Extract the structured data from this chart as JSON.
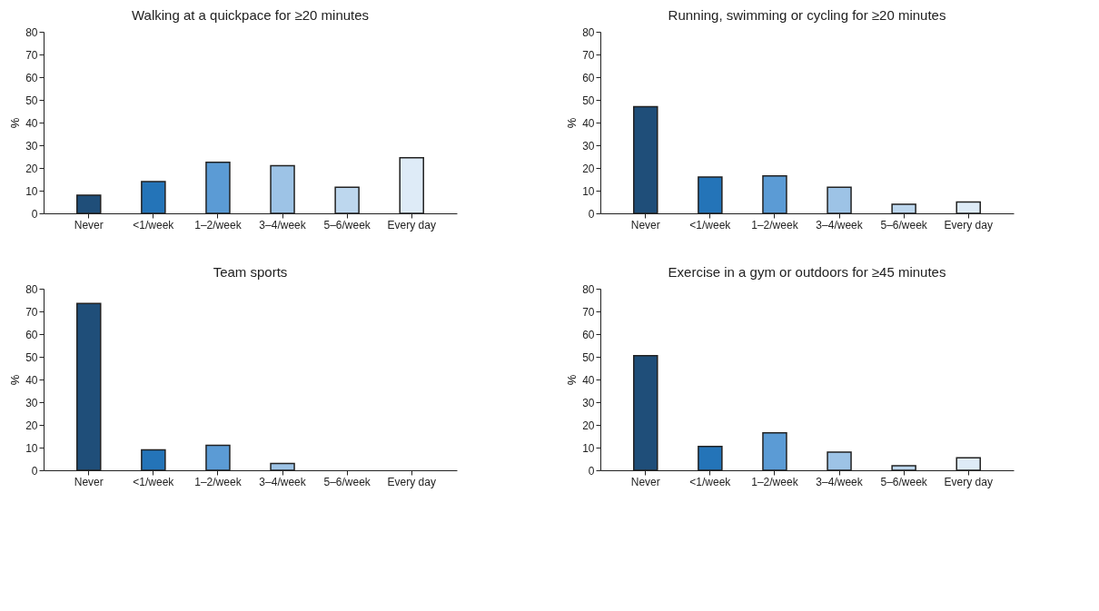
{
  "chart_data": [
    {
      "type": "bar",
      "title": "Walking at a quickpace for ≥20 minutes",
      "ylabel": "%",
      "categories": [
        "Never",
        "<1/week",
        "1–2/week",
        "3–4/week",
        "5–6/week",
        "Every day"
      ],
      "values": [
        8,
        14,
        22.5,
        21,
        11.5,
        24.5
      ],
      "colors": [
        "#1f4e79",
        "#2474b8",
        "#5b9bd5",
        "#9dc3e6",
        "#bdd7ee",
        "#deebf7"
      ],
      "ylim": [
        0,
        80
      ],
      "yticks": [
        0,
        10,
        20,
        30,
        40,
        50,
        60,
        70,
        80
      ],
      "grid": false,
      "legend": false
    },
    {
      "type": "bar",
      "title": "Running, swimming or cycling for ≥20 minutes",
      "ylabel": "%",
      "categories": [
        "Never",
        "<1/week",
        "1–2/week",
        "3–4/week",
        "5–6/week",
        "Every day"
      ],
      "values": [
        47,
        16,
        16.5,
        11.5,
        4,
        5
      ],
      "colors": [
        "#1f4e79",
        "#2474b8",
        "#5b9bd5",
        "#9dc3e6",
        "#bdd7ee",
        "#deebf7"
      ],
      "ylim": [
        0,
        80
      ],
      "yticks": [
        0,
        10,
        20,
        30,
        40,
        50,
        60,
        70,
        80
      ],
      "grid": false,
      "legend": false
    },
    {
      "type": "bar",
      "title": "Team sports",
      "ylabel": "%",
      "categories": [
        "Never",
        "<1/week",
        "1–2/week",
        "3–4/week",
        "5–6/week",
        "Every day"
      ],
      "values": [
        73.5,
        9,
        11,
        3,
        0,
        0
      ],
      "colors": [
        "#1f4e79",
        "#2474b8",
        "#5b9bd5",
        "#9dc3e6",
        "#bdd7ee",
        "#deebf7"
      ],
      "ylim": [
        0,
        80
      ],
      "yticks": [
        0,
        10,
        20,
        30,
        40,
        50,
        60,
        70,
        80
      ],
      "grid": false,
      "legend": false
    },
    {
      "type": "bar",
      "title": "Exercise in a gym or outdoors for ≥45 minutes",
      "ylabel": "%",
      "categories": [
        "Never",
        "<1/week",
        "1–2/week",
        "3–4/week",
        "5–6/week",
        "Every day"
      ],
      "values": [
        50.5,
        10.5,
        16.5,
        8,
        2,
        5.5
      ],
      "colors": [
        "#1f4e79",
        "#2474b8",
        "#5b9bd5",
        "#9dc3e6",
        "#bdd7ee",
        "#deebf7"
      ],
      "ylim": [
        0,
        80
      ],
      "yticks": [
        0,
        10,
        20,
        30,
        40,
        50,
        60,
        70,
        80
      ],
      "grid": false,
      "legend": false
    }
  ]
}
